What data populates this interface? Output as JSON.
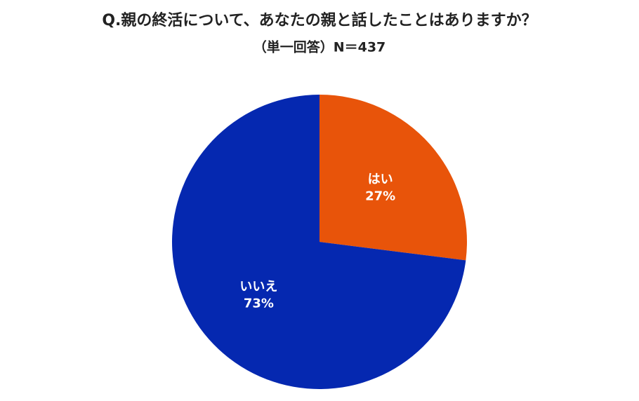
{
  "chart_data": {
    "type": "pie",
    "title": "Q.親の終活について、あなたの親と話したことはありますか？",
    "subtitle": "（単一回答）N＝437",
    "categories": [
      "はい",
      "いいえ"
    ],
    "values": [
      27,
      73
    ],
    "value_labels": [
      "27%",
      "73%"
    ],
    "colors": [
      "#e8540a",
      "#0528b0"
    ]
  }
}
